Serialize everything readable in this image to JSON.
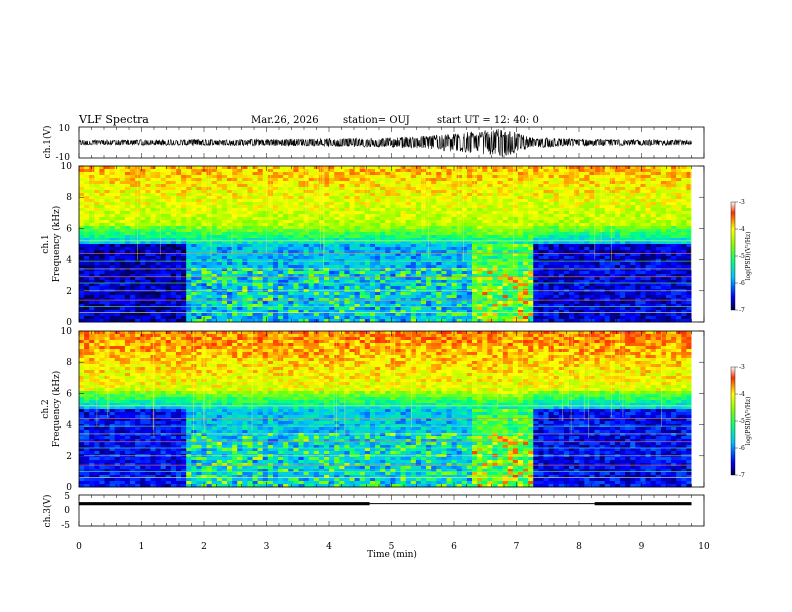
{
  "header": {
    "title": "VLF Spectra",
    "date": "Mar.26, 2026",
    "station": "station= OUJ",
    "start": "start UT =  12: 40: 0"
  },
  "chart_data": [
    {
      "type": "line",
      "name": "ch1-waveform",
      "ylabel": "ch.1(V)",
      "yticks": [
        "10",
        "-10"
      ],
      "ylim": [
        -10,
        10
      ],
      "xlim": [
        0,
        10
      ],
      "x_end": 9.8,
      "amplitude_profile": [
        {
          "t": 0.0,
          "amp": 1.6
        },
        {
          "t": 1.0,
          "amp": 1.8
        },
        {
          "t": 2.0,
          "amp": 2.0
        },
        {
          "t": 3.0,
          "amp": 2.2
        },
        {
          "t": 4.0,
          "amp": 2.6
        },
        {
          "t": 5.0,
          "amp": 3.2
        },
        {
          "t": 5.6,
          "amp": 4.5
        },
        {
          "t": 6.4,
          "amp": 7.5
        },
        {
          "t": 6.8,
          "amp": 9.5
        },
        {
          "t": 7.2,
          "amp": 3.5
        },
        {
          "t": 8.0,
          "amp": 2.2
        },
        {
          "t": 9.8,
          "amp": 1.8
        }
      ]
    },
    {
      "type": "heatmap",
      "name": "ch1-spectrogram",
      "ylabel": "ch.1",
      "ylabel2": "Frequency (kHz)",
      "xlim": [
        0,
        10
      ],
      "x_end": 9.8,
      "ylim": [
        0,
        10
      ],
      "yticks": [
        "0",
        "2",
        "4",
        "6",
        "8",
        "10"
      ],
      "colorbar": {
        "label": "log(PSD)(V²/Hz)",
        "range": [
          -7,
          -3
        ],
        "ticks": [
          "-3",
          "-4",
          "-5",
          "-6",
          "-7"
        ]
      },
      "segments": [
        {
          "t0": 0.0,
          "t1": 1.7,
          "level": 0.0
        },
        {
          "t0": 1.7,
          "t1": 6.3,
          "level": 0.5
        },
        {
          "t0": 6.3,
          "t1": 7.3,
          "level": 1.0
        },
        {
          "t0": 7.3,
          "t1": 9.8,
          "level": 0.05
        }
      ]
    },
    {
      "type": "heatmap",
      "name": "ch2-spectrogram",
      "ylabel": "ch.2",
      "ylabel2": "Frequency (kHz)",
      "xlim": [
        0,
        10
      ],
      "x_end": 9.8,
      "ylim": [
        0,
        10
      ],
      "yticks": [
        "0",
        "2",
        "4",
        "6",
        "8",
        "10"
      ],
      "colorbar": {
        "label": "log(PSD)(V²/Hz)",
        "range": [
          -7,
          -3
        ],
        "ticks": [
          "-3",
          "-4",
          "-5",
          "-6",
          "-7"
        ]
      },
      "segments": [
        {
          "t0": 0.0,
          "t1": 1.7,
          "level": 0.1
        },
        {
          "t0": 1.7,
          "t1": 6.3,
          "level": 0.55
        },
        {
          "t0": 6.3,
          "t1": 7.3,
          "level": 1.0
        },
        {
          "t0": 7.3,
          "t1": 9.8,
          "level": 0.1
        }
      ]
    },
    {
      "type": "line",
      "name": "ch3-level",
      "ylabel": "ch.3(V)",
      "yticks": [
        "5",
        "0",
        "-5"
      ],
      "ylim": [
        -5,
        5
      ],
      "xlim": [
        0,
        10
      ],
      "xlabel": "Time (min)",
      "xticks": [
        "0",
        "1",
        "2",
        "3",
        "4",
        "5",
        "6",
        "7",
        "8",
        "9",
        "10"
      ],
      "segments": [
        {
          "t0": 0.0,
          "t1": 4.65,
          "value": 2.2,
          "thick": true
        },
        {
          "t0": 4.65,
          "t1": 8.25,
          "value": 2.2,
          "thick": false
        },
        {
          "t0": 8.25,
          "t1": 9.8,
          "value": 2.2,
          "thick": true
        }
      ]
    }
  ]
}
